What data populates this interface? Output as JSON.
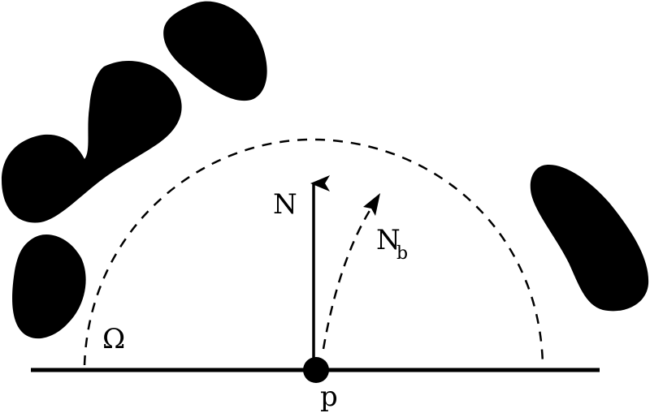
{
  "labels": {
    "normal": "N",
    "bent_normal": "N",
    "bent_normal_subscript": "b",
    "hemisphere": "Ω",
    "point": "p"
  },
  "colors": {
    "ink": "#000000",
    "background": "#ffffff"
  }
}
